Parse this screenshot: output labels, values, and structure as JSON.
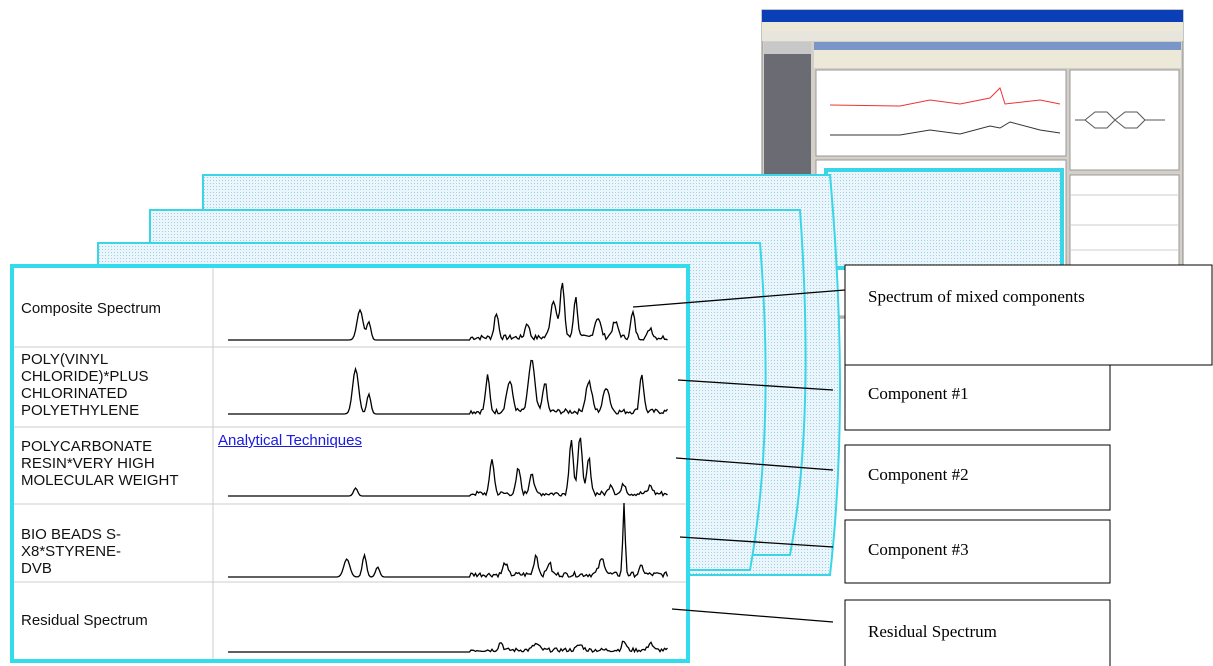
{
  "table": {
    "rows": [
      {
        "label": "Composite Spectrum"
      },
      {
        "label": "POLY(VINYL CHLORIDE)*PLUS CHLORINATED POLYETHYLENE"
      },
      {
        "label": "POLYCARBONATE RESIN*VERY HIGH MOLECULAR WEIGHT"
      },
      {
        "label": "BIO BEADS S-X8*STYRENE-DVB"
      },
      {
        "label": "Residual Spectrum"
      }
    ],
    "link": "Analytical Techniques"
  },
  "callouts": [
    "Spectrum of mixed components",
    "Component #1",
    "Component #2",
    "Component #3",
    "Residual Spectrum"
  ]
}
